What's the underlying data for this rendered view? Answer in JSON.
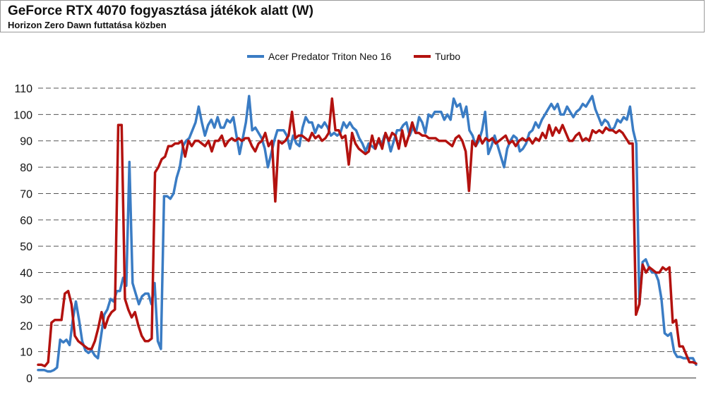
{
  "header": {
    "title": "GeForce RTX 4070 fogyasztása játékok alatt (W)",
    "subtitle": "Horizon Zero Dawn futtatása közben"
  },
  "colors": {
    "series1": "#3a7cc4",
    "series2": "#b3120f",
    "grid": "#555555"
  },
  "chart_data": {
    "type": "line",
    "title": "GeForce RTX 4070 fogyasztása játékok alatt (W)",
    "subtitle": "Horizon Zero Dawn futtatása közben",
    "ylim": [
      0,
      110
    ],
    "yticks": [
      0,
      10,
      20,
      30,
      40,
      50,
      60,
      70,
      80,
      90,
      100,
      110
    ],
    "grid": true,
    "legend_position": "top-center",
    "series": [
      {
        "name": "Acer Predator Triton Neo 16",
        "color": "#3a7cc4",
        "values": [
          3,
          3,
          3,
          2.5,
          2.5,
          3,
          4,
          14.5,
          13.5,
          14.5,
          12.5,
          22,
          29,
          22,
          14,
          10.5,
          9.5,
          10.5,
          8.5,
          7.5,
          16,
          24,
          26,
          30,
          29,
          33,
          33,
          38,
          35,
          82,
          36,
          32,
          28,
          31,
          32,
          32,
          28,
          36,
          14,
          11,
          69,
          69,
          68,
          70,
          76,
          80,
          88,
          90,
          91,
          94,
          97,
          103,
          97,
          92,
          96,
          98,
          95,
          99,
          95,
          95,
          98,
          97,
          99,
          92,
          85,
          91,
          97,
          107,
          94,
          95,
          93,
          91,
          87,
          80,
          85,
          90,
          94,
          94,
          94,
          92,
          87,
          92,
          89,
          88,
          95,
          99,
          97,
          97,
          93,
          96,
          95,
          97,
          95,
          92,
          93,
          92,
          93,
          97,
          95,
          97,
          95,
          94,
          91,
          89,
          86,
          89,
          88,
          87,
          90,
          88,
          92,
          91,
          86,
          90,
          94,
          94,
          96,
          97,
          92,
          95,
          93,
          99,
          97,
          93,
          100,
          99,
          101,
          101,
          101,
          98,
          100,
          98,
          106,
          103,
          104,
          99,
          103,
          94,
          92,
          88,
          90,
          94,
          101,
          85,
          88,
          92,
          88,
          84,
          80,
          87,
          90,
          92,
          91,
          86,
          87,
          89,
          93,
          94,
          97,
          95,
          98,
          100,
          102,
          104,
          102,
          104,
          100,
          100,
          103,
          101,
          99,
          101,
          102,
          104,
          103,
          105,
          107,
          102,
          99,
          96,
          98,
          97,
          94,
          95,
          98,
          97,
          99,
          98,
          103,
          94,
          89,
          28,
          44,
          45,
          42,
          40,
          40,
          37,
          30,
          17,
          16,
          17,
          10,
          8,
          8,
          7.5,
          7.5,
          7.5,
          7.5,
          5
        ]
      },
      {
        "name": "Turbo",
        "color": "#b3120f",
        "values": [
          5,
          5,
          4.5,
          6,
          21,
          22,
          22,
          22,
          32,
          33,
          28,
          16,
          14,
          13,
          12,
          11,
          11,
          14,
          19,
          25,
          19,
          23,
          25,
          26,
          96,
          96,
          30,
          26,
          23,
          25,
          20,
          16,
          14,
          14,
          15,
          78,
          80,
          83,
          84,
          88,
          88,
          89,
          89,
          90,
          84,
          90,
          88,
          90,
          90,
          89,
          88,
          90,
          86,
          90,
          90,
          92,
          88,
          90,
          91,
          90,
          91,
          90,
          91,
          91,
          88,
          86,
          89,
          90,
          93,
          88,
          90,
          67,
          90,
          89,
          90,
          92,
          101,
          91,
          92,
          92,
          91,
          90,
          93,
          91,
          92,
          90,
          91,
          93,
          106,
          94,
          94,
          91,
          92,
          81,
          93,
          89,
          87,
          86,
          85,
          86,
          92,
          87,
          91,
          87,
          93,
          90,
          93,
          92,
          87,
          94,
          88,
          92,
          97,
          93,
          93,
          92,
          92,
          91,
          91,
          91,
          90,
          90,
          90,
          89,
          88,
          91,
          92,
          90,
          86,
          71,
          90,
          88,
          92,
          89,
          91,
          90,
          91,
          89,
          90,
          91,
          92,
          89,
          90,
          88,
          90,
          91,
          90,
          91,
          89,
          91,
          90,
          93,
          91,
          96,
          92,
          95,
          93,
          96,
          93,
          90,
          90,
          92,
          93,
          90,
          91,
          90,
          94,
          93,
          94,
          93,
          95,
          94,
          94,
          93,
          94,
          93,
          91,
          89,
          89,
          24,
          28,
          43,
          40,
          42,
          41,
          40,
          40,
          42,
          41,
          42,
          21,
          22,
          12,
          12,
          9,
          6,
          6,
          5.5
        ]
      }
    ]
  }
}
